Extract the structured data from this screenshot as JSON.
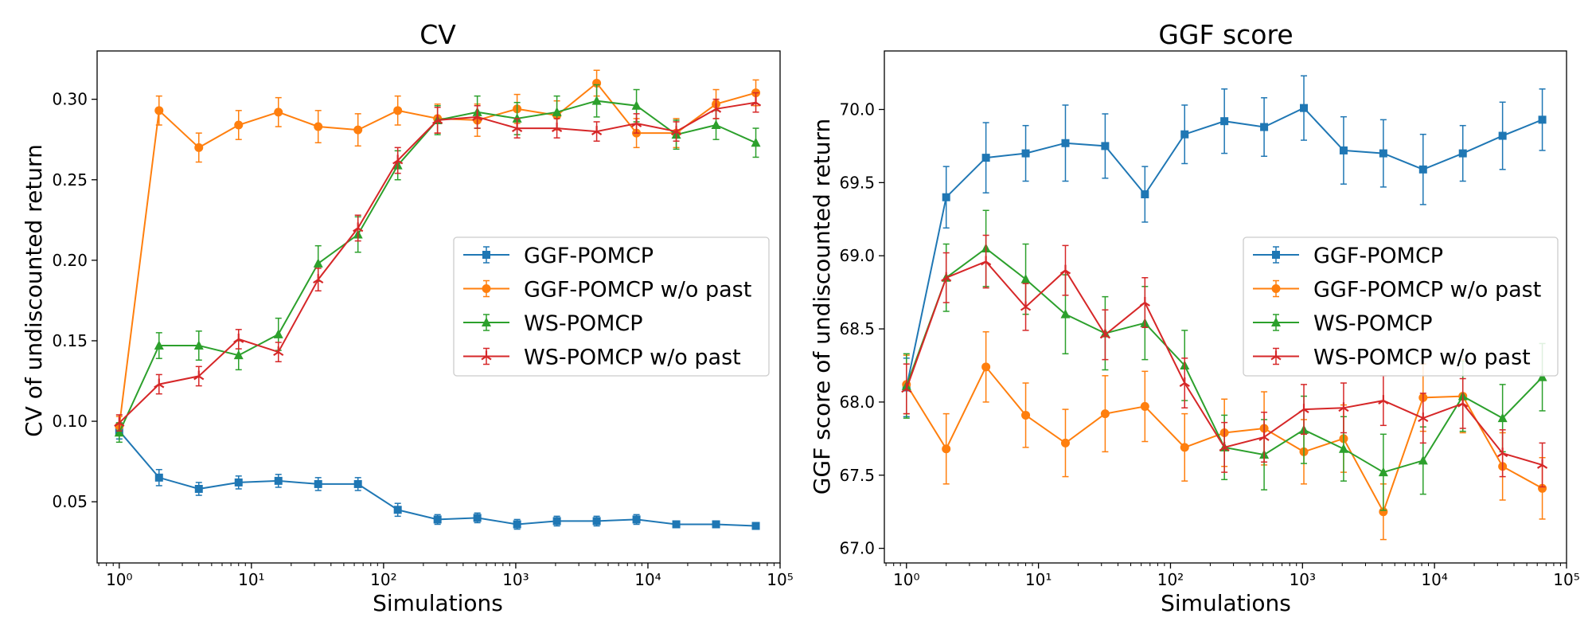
{
  "colors": {
    "GGF-POMCP": "#1f77b4",
    "GGF-POMCP w/o past": "#ff7f0e",
    "WS-POMCP": "#2ca02c",
    "WS-POMCP w/o past": "#d62728"
  },
  "markers": {
    "GGF-POMCP": "square",
    "GGF-POMCP w/o past": "circle",
    "WS-POMCP": "triangle",
    "WS-POMCP w/o past": "tri-star"
  },
  "chart_data": [
    {
      "type": "line",
      "title": "CV",
      "xlabel": "Simulations",
      "ylabel": "CV of undiscounted return",
      "xscale": "log",
      "xlim": [
        0.68,
        100000
      ],
      "ylim": [
        0.012,
        0.33
      ],
      "xtick_labels": [
        "10⁰",
        "10¹",
        "10²",
        "10³",
        "10⁴",
        "10⁵"
      ],
      "ytick_values": [
        0.05,
        0.1,
        0.15,
        0.2,
        0.25,
        0.3
      ],
      "ytick_labels": [
        "0.05",
        "0.10",
        "0.15",
        "0.20",
        "0.25",
        "0.30"
      ],
      "legend_position": "center-right",
      "x": [
        1,
        2,
        4,
        8,
        16,
        32,
        64,
        128,
        256,
        512,
        1024,
        2048,
        4096,
        8192,
        16384,
        32768,
        65536
      ],
      "series": [
        {
          "name": "GGF-POMCP",
          "values": [
            0.094,
            0.065,
            0.058,
            0.062,
            0.063,
            0.061,
            0.061,
            0.045,
            0.039,
            0.04,
            0.036,
            0.038,
            0.038,
            0.039,
            0.036,
            0.036,
            0.035
          ],
          "errors": [
            0.005,
            0.005,
            0.004,
            0.004,
            0.004,
            0.004,
            0.004,
            0.004,
            0.003,
            0.003,
            0.003,
            0.003,
            0.003,
            0.003,
            0.002,
            0.002,
            0.002
          ]
        },
        {
          "name": "GGF-POMCP w/o past",
          "values": [
            0.097,
            0.293,
            0.27,
            0.284,
            0.292,
            0.283,
            0.281,
            0.293,
            0.288,
            0.287,
            0.294,
            0.29,
            0.31,
            0.279,
            0.279,
            0.297,
            0.304
          ],
          "errors": [
            0.006,
            0.009,
            0.009,
            0.009,
            0.009,
            0.01,
            0.01,
            0.009,
            0.009,
            0.01,
            0.009,
            0.009,
            0.008,
            0.009,
            0.009,
            0.009,
            0.008
          ]
        },
        {
          "name": "WS-POMCP",
          "values": [
            0.093,
            0.147,
            0.147,
            0.141,
            0.154,
            0.198,
            0.216,
            0.259,
            0.287,
            0.292,
            0.288,
            0.292,
            0.299,
            0.296,
            0.278,
            0.284,
            0.273
          ],
          "errors": [
            0.006,
            0.008,
            0.009,
            0.009,
            0.01,
            0.011,
            0.011,
            0.009,
            0.009,
            0.01,
            0.01,
            0.01,
            0.01,
            0.01,
            0.009,
            0.009,
            0.009
          ]
        },
        {
          "name": "WS-POMCP w/o past",
          "values": [
            0.099,
            0.123,
            0.128,
            0.151,
            0.143,
            0.188,
            0.22,
            0.262,
            0.287,
            0.289,
            0.282,
            0.282,
            0.28,
            0.285,
            0.28,
            0.294,
            0.298
          ],
          "errors": [
            0.005,
            0.006,
            0.006,
            0.006,
            0.006,
            0.007,
            0.008,
            0.008,
            0.008,
            0.007,
            0.006,
            0.006,
            0.006,
            0.006,
            0.006,
            0.006,
            0.006
          ]
        }
      ]
    },
    {
      "type": "line",
      "title": "GGF score",
      "xlabel": "Simulations",
      "ylabel": "GGF score of undiscounted return",
      "xscale": "log",
      "xlim": [
        0.68,
        100000
      ],
      "ylim": [
        66.9,
        70.4
      ],
      "xtick_labels": [
        "10⁰",
        "10¹",
        "10²",
        "10³",
        "10⁴",
        "10⁵"
      ],
      "ytick_values": [
        67.0,
        67.5,
        68.0,
        68.5,
        69.0,
        69.5,
        70.0
      ],
      "ytick_labels": [
        "67.0",
        "67.5",
        "68.0",
        "68.5",
        "69.0",
        "69.5",
        "70.0"
      ],
      "legend_position": "center-right",
      "x": [
        1,
        2,
        4,
        8,
        16,
        32,
        64,
        128,
        256,
        512,
        1024,
        2048,
        4096,
        8192,
        16384,
        32768,
        65536
      ],
      "series": [
        {
          "name": "GGF-POMCP",
          "values": [
            68.1,
            69.4,
            69.67,
            69.7,
            69.77,
            69.75,
            69.42,
            69.83,
            69.92,
            69.88,
            70.01,
            69.72,
            69.7,
            69.59,
            69.7,
            69.82,
            69.93
          ],
          "errors": [
            0.2,
            0.21,
            0.24,
            0.19,
            0.26,
            0.22,
            0.19,
            0.2,
            0.22,
            0.2,
            0.22,
            0.23,
            0.23,
            0.24,
            0.19,
            0.23,
            0.21
          ]
        },
        {
          "name": "GGF-POMCP w/o past",
          "values": [
            68.12,
            67.68,
            68.24,
            67.91,
            67.72,
            67.92,
            67.97,
            67.69,
            67.79,
            67.82,
            67.66,
            67.75,
            67.25,
            68.03,
            68.04,
            67.56,
            67.41
          ],
          "errors": [
            0.2,
            0.24,
            0.24,
            0.22,
            0.23,
            0.26,
            0.24,
            0.23,
            0.23,
            0.25,
            0.22,
            0.23,
            0.19,
            0.23,
            0.25,
            0.23,
            0.21
          ]
        },
        {
          "name": "WS-POMCP",
          "values": [
            68.11,
            68.85,
            69.05,
            68.84,
            68.6,
            68.47,
            68.54,
            68.25,
            67.69,
            67.64,
            67.81,
            67.68,
            67.52,
            67.6,
            68.04,
            67.89,
            68.17
          ],
          "errors": [
            0.22,
            0.23,
            0.26,
            0.24,
            0.27,
            0.25,
            0.25,
            0.24,
            0.22,
            0.24,
            0.23,
            0.22,
            0.26,
            0.23,
            0.24,
            0.23,
            0.23
          ]
        },
        {
          "name": "WS-POMCP w/o past",
          "values": [
            68.09,
            68.85,
            68.96,
            68.65,
            68.9,
            68.46,
            68.68,
            68.13,
            67.69,
            67.76,
            67.95,
            67.96,
            68.01,
            67.89,
            67.99,
            67.65,
            67.57
          ],
          "errors": [
            0.17,
            0.17,
            0.18,
            0.16,
            0.17,
            0.17,
            0.17,
            0.17,
            0.17,
            0.17,
            0.17,
            0.17,
            0.17,
            0.17,
            0.17,
            0.16,
            0.15
          ]
        }
      ]
    }
  ]
}
